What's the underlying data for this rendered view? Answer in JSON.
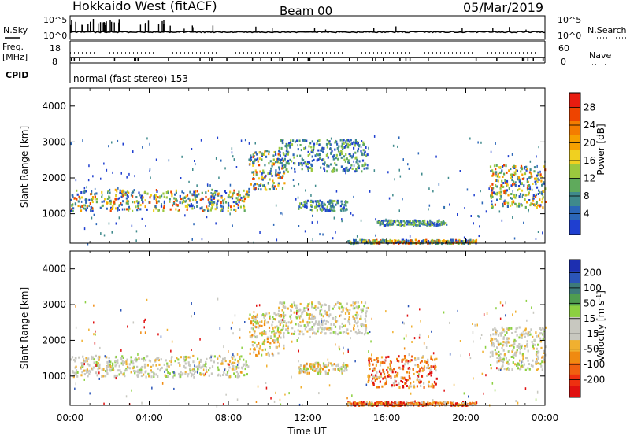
{
  "header": {
    "station": "Hokkaido West (fitACF)",
    "beam": "Beam 00",
    "date": "05/Mar/2019"
  },
  "top_panel": {
    "nsky_label": "N.Sky",
    "nsearch_label": "N.Search",
    "left_ticks": [
      "10^5",
      "10^0"
    ],
    "right_ticks": [
      "10^5",
      "10^0"
    ],
    "freq_label": "Freq.",
    "freq_unit": "[MHz]",
    "freq_ticks": [
      "18",
      "8"
    ],
    "nave_label": "Nave",
    "nave_ticks": [
      "60",
      "0"
    ],
    "cpid_label": "CPID",
    "cpid_text": "normal (fast stereo) 153"
  },
  "x_axis": {
    "label": "Time UT",
    "ticks": [
      "00:00",
      "04:00",
      "08:00",
      "12:00",
      "16:00",
      "20:00",
      "00:00"
    ]
  },
  "chart_data": [
    {
      "type": "heatmap",
      "name": "power",
      "ylabel": "Slant Range [km]",
      "xlabel": "",
      "xlim_hours": [
        0,
        24
      ],
      "ylim": [
        180,
        4500
      ],
      "yticks": [
        "1000",
        "2000",
        "3000",
        "4000"
      ],
      "colorbar": {
        "label": "Power [dB]",
        "ticks": [
          "4",
          "8",
          "12",
          "16",
          "20",
          "24",
          "28"
        ],
        "colors": [
          "#1f3fd0",
          "#2b66b8",
          "#3f8a8c",
          "#5faa5c",
          "#9bc83e",
          "#f0d020",
          "#f6a000",
          "#f47c00",
          "#ee4400",
          "#e81c10"
        ]
      },
      "echo_regions": [
        {
          "t0": 0.0,
          "t1": 9.0,
          "r0": 1100,
          "r1": 1700,
          "level": "high"
        },
        {
          "t0": 9.0,
          "t1": 10.8,
          "r0": 1700,
          "r1": 2800,
          "level": "high"
        },
        {
          "t0": 10.5,
          "t1": 15.0,
          "r0": 2200,
          "r1": 3100,
          "level": "mid"
        },
        {
          "t0": 11.5,
          "t1": 14.0,
          "r0": 1100,
          "r1": 1400,
          "level": "mid"
        },
        {
          "t0": 15.5,
          "t1": 19.0,
          "r0": 700,
          "r1": 850,
          "level": "mid"
        },
        {
          "t0": 14.0,
          "t1": 20.5,
          "r0": 200,
          "r1": 300,
          "level": "high"
        },
        {
          "t0": 21.2,
          "t1": 24.0,
          "r0": 1200,
          "r1": 2400,
          "level": "high"
        }
      ]
    },
    {
      "type": "heatmap",
      "name": "velocity",
      "ylabel": "Slant Range [km]",
      "xlabel": "Time UT",
      "xlim_hours": [
        0,
        24
      ],
      "ylim": [
        180,
        4500
      ],
      "yticks": [
        "1000",
        "2000",
        "3000",
        "4000"
      ],
      "colorbar": {
        "label": "Velocity [m s-1]",
        "ticks": [
          "200",
          "100",
          "50",
          "15",
          "-15",
          "-50",
          "-100",
          "-200"
        ],
        "colors": [
          "#1d2fb0",
          "#2b55b8",
          "#3d7a7a",
          "#4f9c50",
          "#8cd040",
          "#c8c8c0",
          "#c8c8c0",
          "#f0b030",
          "#f08a10",
          "#f06010",
          "#ee3010",
          "#e01010"
        ]
      },
      "echo_regions": [
        {
          "t0": 0.0,
          "t1": 9.0,
          "r0": 1000,
          "r1": 1600,
          "level": "ground"
        },
        {
          "t0": 9.0,
          "t1": 10.8,
          "r0": 1600,
          "r1": 2800,
          "level": "mixed"
        },
        {
          "t0": 10.5,
          "t1": 15.0,
          "r0": 2200,
          "r1": 3100,
          "level": "ground"
        },
        {
          "t0": 11.5,
          "t1": 14.0,
          "r0": 1100,
          "r1": 1400,
          "level": "mixed"
        },
        {
          "t0": 15.0,
          "t1": 18.5,
          "r0": 700,
          "r1": 1600,
          "level": "negative"
        },
        {
          "t0": 14.0,
          "t1": 20.5,
          "r0": 200,
          "r1": 300,
          "level": "negative"
        },
        {
          "t0": 21.2,
          "t1": 24.0,
          "r0": 1200,
          "r1": 2400,
          "level": "ground"
        }
      ]
    }
  ]
}
